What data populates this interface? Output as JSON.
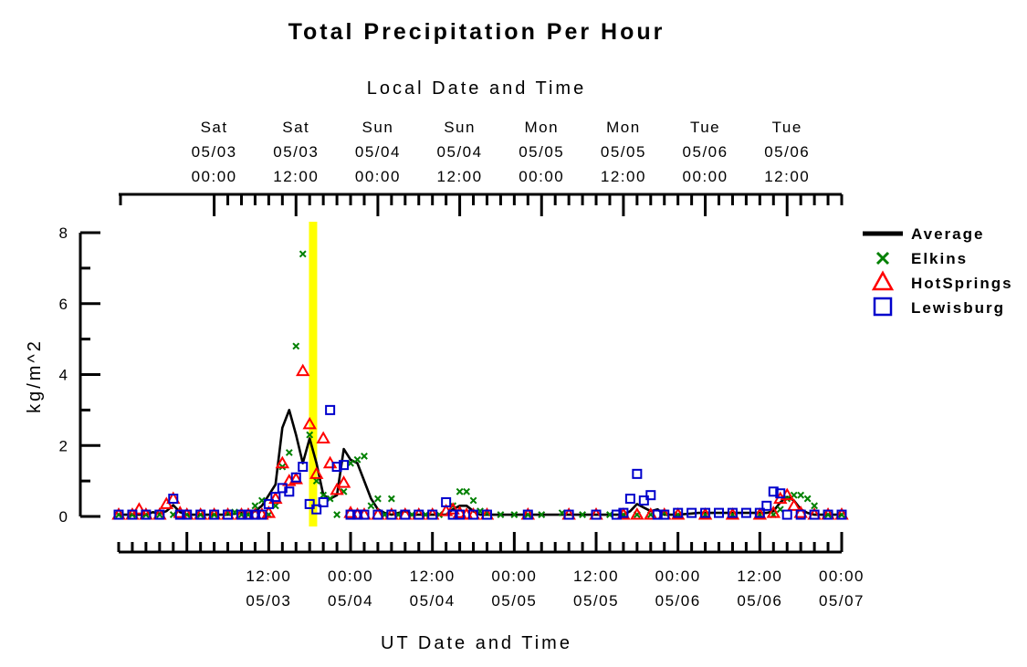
{
  "chart_data": {
    "type": "scatter",
    "title": "Total Precipitation Per Hour",
    "top_axis_title": "Local Date and Time",
    "xlabel": "UT Date and Time",
    "ylabel": "kg/m^2",
    "xlim": [
      "05/02 14:00",
      "05/07 00:00"
    ],
    "ylim": [
      -0.2,
      8
    ],
    "yticks": [
      0,
      2,
      4,
      6,
      8
    ],
    "x_units": "UT hours since 05/03 00:00",
    "top_ticks": [
      {
        "day": "Sat",
        "date": "05/03",
        "time": "00:00"
      },
      {
        "day": "Sat",
        "date": "05/03",
        "time": "12:00"
      },
      {
        "day": "Sun",
        "date": "05/04",
        "time": "00:00"
      },
      {
        "day": "Sun",
        "date": "05/04",
        "time": "12:00"
      },
      {
        "day": "Mon",
        "date": "05/05",
        "time": "00:00"
      },
      {
        "day": "Mon",
        "date": "05/05",
        "time": "12:00"
      },
      {
        "day": "Tue",
        "date": "05/06",
        "time": "00:00"
      },
      {
        "day": "Tue",
        "date": "05/06",
        "time": "12:00"
      }
    ],
    "bottom_ticks": [
      {
        "time": "12:00",
        "date": "05/03"
      },
      {
        "time": "00:00",
        "date": "05/04"
      },
      {
        "time": "12:00",
        "date": "05/04"
      },
      {
        "time": "00:00",
        "date": "05/05"
      },
      {
        "time": "12:00",
        "date": "05/05"
      },
      {
        "time": "00:00",
        "date": "05/06"
      },
      {
        "time": "12:00",
        "date": "05/06"
      },
      {
        "time": "00:00",
        "date": "05/07"
      }
    ],
    "marker_line": {
      "x": "05/03 18:30",
      "color": "#ffff00"
    },
    "legend_position": "right",
    "series": [
      {
        "name": "Average",
        "kind": "line",
        "color": "#000000",
        "points": [
          [
            -10,
            0.05
          ],
          [
            -8,
            0.05
          ],
          [
            -6,
            0.05
          ],
          [
            -5,
            0.12
          ],
          [
            -4,
            0.08
          ],
          [
            -3,
            0.15
          ],
          [
            -2,
            0.32
          ],
          [
            -1,
            0.12
          ],
          [
            0,
            0.05
          ],
          [
            2,
            0.05
          ],
          [
            4,
            0.05
          ],
          [
            6,
            0.05
          ],
          [
            8,
            0.1
          ],
          [
            9,
            0.08
          ],
          [
            10,
            0.15
          ],
          [
            11,
            0.3
          ],
          [
            12,
            0.6
          ],
          [
            13,
            0.9
          ],
          [
            14,
            2.5
          ],
          [
            15,
            3.0
          ],
          [
            16,
            2.3
          ],
          [
            17,
            1.5
          ],
          [
            18,
            2.2
          ],
          [
            19,
            1.5
          ],
          [
            20,
            0.6
          ],
          [
            21,
            0.5
          ],
          [
            22,
            0.6
          ],
          [
            23,
            1.9
          ],
          [
            24,
            1.6
          ],
          [
            25,
            1.5
          ],
          [
            26,
            1.0
          ],
          [
            27,
            0.5
          ],
          [
            28,
            0.2
          ],
          [
            29,
            0.1
          ],
          [
            30,
            0.05
          ],
          [
            31,
            0.1
          ],
          [
            32,
            0.15
          ],
          [
            33,
            0.05
          ],
          [
            35,
            0.05
          ],
          [
            37,
            0.05
          ],
          [
            38,
            0.05
          ],
          [
            39,
            0.2
          ],
          [
            40,
            0.3
          ],
          [
            41,
            0.3
          ],
          [
            42,
            0.15
          ],
          [
            43,
            0.05
          ],
          [
            45,
            0.05
          ],
          [
            50,
            0.05
          ],
          [
            55,
            0.05
          ],
          [
            60,
            0.05
          ],
          [
            64,
            0.05
          ],
          [
            65,
            0.15
          ],
          [
            66,
            0.35
          ],
          [
            67,
            0.25
          ],
          [
            68,
            0.15
          ],
          [
            69,
            0.2
          ],
          [
            70,
            0.05
          ],
          [
            72,
            0.05
          ],
          [
            75,
            0.1
          ],
          [
            80,
            0.1
          ],
          [
            85,
            0.1
          ],
          [
            86,
            0.15
          ],
          [
            87,
            0.4
          ],
          [
            88,
            0.55
          ],
          [
            89,
            0.45
          ],
          [
            90,
            0.2
          ],
          [
            91,
            0.1
          ],
          [
            92,
            0.05
          ],
          [
            93,
            0.05
          ],
          [
            94,
            0.05
          ],
          [
            95,
            0.05
          ],
          [
            96,
            0.05
          ]
        ]
      },
      {
        "name": "Elkins",
        "kind": "marker",
        "marker": "x",
        "color": "#008000",
        "points": [
          [
            -10,
            0.05
          ],
          [
            -8,
            0.05
          ],
          [
            -6,
            0.05
          ],
          [
            -4,
            0.05
          ],
          [
            -2,
            0.05
          ],
          [
            0,
            0.05
          ],
          [
            2,
            0.05
          ],
          [
            4,
            0.05
          ],
          [
            6,
            0.1
          ],
          [
            7,
            0.12
          ],
          [
            8,
            0.05
          ],
          [
            9,
            0.05
          ],
          [
            10,
            0.3
          ],
          [
            11,
            0.45
          ],
          [
            12,
            0.05
          ],
          [
            13,
            0.3
          ],
          [
            14,
            1.4
          ],
          [
            15,
            1.8
          ],
          [
            16,
            4.8
          ],
          [
            17,
            7.4
          ],
          [
            18,
            2.3
          ],
          [
            19,
            1.0
          ],
          [
            20,
            0.6
          ],
          [
            21,
            0.5
          ],
          [
            22,
            0.05
          ],
          [
            23,
            0.7
          ],
          [
            24,
            1.5
          ],
          [
            25,
            1.6
          ],
          [
            26,
            1.7
          ],
          [
            27,
            0.3
          ],
          [
            28,
            0.5
          ],
          [
            29,
            0.05
          ],
          [
            30,
            0.5
          ],
          [
            31,
            0.05
          ],
          [
            33,
            0.05
          ],
          [
            35,
            0.05
          ],
          [
            37,
            0.05
          ],
          [
            39,
            0.3
          ],
          [
            40,
            0.7
          ],
          [
            41,
            0.7
          ],
          [
            42,
            0.45
          ],
          [
            43,
            0.15
          ],
          [
            44,
            0.1
          ],
          [
            46,
            0.05
          ],
          [
            48,
            0.05
          ],
          [
            50,
            0.05
          ],
          [
            52,
            0.05
          ],
          [
            55,
            0.1
          ],
          [
            58,
            0.05
          ],
          [
            62,
            0.05
          ],
          [
            64,
            0.05
          ],
          [
            66,
            0.05
          ],
          [
            68,
            0.05
          ],
          [
            70,
            0.1
          ],
          [
            72,
            0.05
          ],
          [
            76,
            0.05
          ],
          [
            80,
            0.05
          ],
          [
            84,
            0.05
          ],
          [
            86,
            0.05
          ],
          [
            87,
            0.2
          ],
          [
            88,
            0.5
          ],
          [
            89,
            0.6
          ],
          [
            90,
            0.6
          ],
          [
            91,
            0.5
          ],
          [
            92,
            0.3
          ],
          [
            94,
            0.05
          ],
          [
            96,
            0.05
          ]
        ]
      },
      {
        "name": "HotSprings",
        "kind": "marker",
        "marker": "triangle",
        "color": "#ff0000",
        "points": [
          [
            -10,
            0.05
          ],
          [
            -8,
            0.05
          ],
          [
            -7,
            0.2
          ],
          [
            -6,
            0.05
          ],
          [
            -4,
            0.05
          ],
          [
            -3,
            0.35
          ],
          [
            -2,
            0.5
          ],
          [
            -1,
            0.1
          ],
          [
            0,
            0.05
          ],
          [
            2,
            0.05
          ],
          [
            4,
            0.05
          ],
          [
            6,
            0.05
          ],
          [
            8,
            0.05
          ],
          [
            9,
            0.05
          ],
          [
            10,
            0.05
          ],
          [
            11,
            0.05
          ],
          [
            12,
            0.1
          ],
          [
            13,
            0.5
          ],
          [
            14,
            1.5
          ],
          [
            15,
            1.0
          ],
          [
            16,
            1.05
          ],
          [
            17,
            4.1
          ],
          [
            18,
            2.6
          ],
          [
            19,
            1.2
          ],
          [
            20,
            2.2
          ],
          [
            21,
            1.5
          ],
          [
            22,
            0.75
          ],
          [
            23,
            0.95
          ],
          [
            24,
            0.1
          ],
          [
            25,
            0.05
          ],
          [
            26,
            0.05
          ],
          [
            28,
            0.05
          ],
          [
            30,
            0.05
          ],
          [
            32,
            0.05
          ],
          [
            34,
            0.05
          ],
          [
            36,
            0.05
          ],
          [
            38,
            0.15
          ],
          [
            39,
            0.2
          ],
          [
            40,
            0.1
          ],
          [
            41,
            0.05
          ],
          [
            42,
            0.05
          ],
          [
            44,
            0.05
          ],
          [
            50,
            0.05
          ],
          [
            56,
            0.05
          ],
          [
            60,
            0.05
          ],
          [
            64,
            0.05
          ],
          [
            66,
            0.05
          ],
          [
            68,
            0.05
          ],
          [
            70,
            0.05
          ],
          [
            72,
            0.05
          ],
          [
            76,
            0.05
          ],
          [
            80,
            0.05
          ],
          [
            84,
            0.05
          ],
          [
            86,
            0.1
          ],
          [
            87,
            0.5
          ],
          [
            88,
            0.6
          ],
          [
            89,
            0.3
          ],
          [
            90,
            0.1
          ],
          [
            92,
            0.05
          ],
          [
            94,
            0.05
          ],
          [
            96,
            0.05
          ]
        ]
      },
      {
        "name": "Lewisburg",
        "kind": "marker",
        "marker": "square",
        "color": "#0000cc",
        "points": [
          [
            -10,
            0.05
          ],
          [
            -8,
            0.05
          ],
          [
            -6,
            0.05
          ],
          [
            -4,
            0.05
          ],
          [
            -2,
            0.5
          ],
          [
            -1,
            0.05
          ],
          [
            0,
            0.05
          ],
          [
            2,
            0.05
          ],
          [
            4,
            0.05
          ],
          [
            6,
            0.05
          ],
          [
            8,
            0.05
          ],
          [
            9,
            0.05
          ],
          [
            10,
            0.05
          ],
          [
            11,
            0.05
          ],
          [
            12,
            0.35
          ],
          [
            13,
            0.55
          ],
          [
            14,
            0.8
          ],
          [
            15,
            0.7
          ],
          [
            16,
            1.1
          ],
          [
            17,
            1.4
          ],
          [
            18,
            0.35
          ],
          [
            19,
            0.2
          ],
          [
            20,
            0.4
          ],
          [
            21,
            3.0
          ],
          [
            22,
            1.4
          ],
          [
            23,
            1.45
          ],
          [
            24,
            0.05
          ],
          [
            25,
            0.05
          ],
          [
            26,
            0.05
          ],
          [
            28,
            0.05
          ],
          [
            30,
            0.05
          ],
          [
            32,
            0.05
          ],
          [
            34,
            0.05
          ],
          [
            36,
            0.05
          ],
          [
            38,
            0.4
          ],
          [
            39,
            0.05
          ],
          [
            40,
            0.05
          ],
          [
            42,
            0.05
          ],
          [
            44,
            0.05
          ],
          [
            50,
            0.05
          ],
          [
            56,
            0.05
          ],
          [
            60,
            0.05
          ],
          [
            63,
            0.05
          ],
          [
            64,
            0.1
          ],
          [
            65,
            0.5
          ],
          [
            66,
            1.2
          ],
          [
            67,
            0.45
          ],
          [
            68,
            0.6
          ],
          [
            69,
            0.05
          ],
          [
            70,
            0.05
          ],
          [
            72,
            0.1
          ],
          [
            74,
            0.1
          ],
          [
            76,
            0.1
          ],
          [
            78,
            0.1
          ],
          [
            80,
            0.1
          ],
          [
            82,
            0.1
          ],
          [
            84,
            0.1
          ],
          [
            85,
            0.3
          ],
          [
            86,
            0.7
          ],
          [
            87,
            0.65
          ],
          [
            88,
            0.05
          ],
          [
            90,
            0.05
          ],
          [
            92,
            0.05
          ],
          [
            94,
            0.05
          ],
          [
            96,
            0.05
          ]
        ]
      }
    ]
  }
}
